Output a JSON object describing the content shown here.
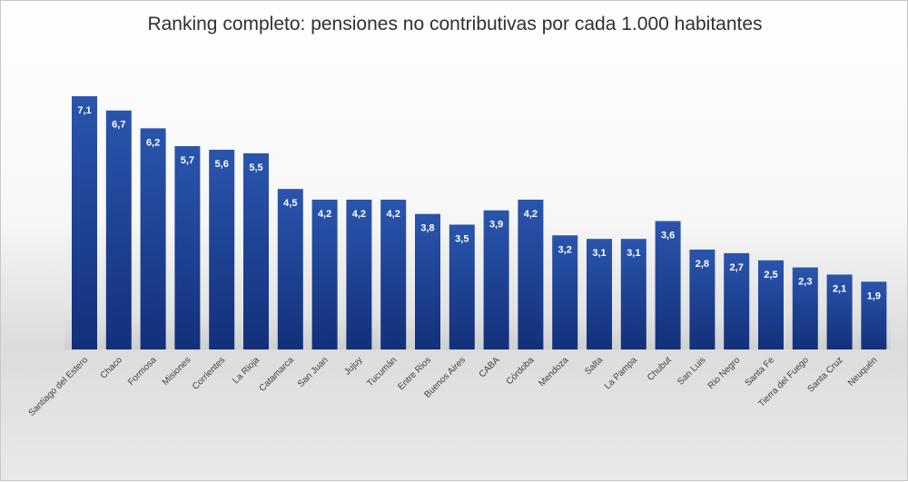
{
  "chart_data": {
    "type": "bar",
    "title": "Ranking completo: pensiones no contributivas por cada 1.000 habitantes",
    "categories": [
      "Santiago del Estero",
      "Chaco",
      "Formosa",
      "Misiones",
      "Corrientes",
      "La Rioja",
      "Catamarca",
      "San Juan",
      "Jujuy",
      "Tucumán",
      "Entre Rios",
      "Buenos Aires",
      "CABA",
      "Córdoba",
      "Mendoza",
      "Salta",
      "La Pampa",
      "Chubut",
      "San Luis",
      "Rio Negro",
      "Santa Fe",
      "Tierra del Fuego",
      "Santa Cruz",
      "Neuquén"
    ],
    "values": [
      7.1,
      6.7,
      6.2,
      5.7,
      5.6,
      5.5,
      4.5,
      4.2,
      4.2,
      4.2,
      3.8,
      3.5,
      3.9,
      4.2,
      3.2,
      3.1,
      3.1,
      3.6,
      2.8,
      2.7,
      2.5,
      2.3,
      2.1,
      1.9
    ],
    "value_labels": [
      "7,1",
      "6,7",
      "6,2",
      "5,7",
      "5,6",
      "5,5",
      "4,5",
      "4,2",
      "4,2",
      "4,2",
      "3,8",
      "3,5",
      "3,9",
      "4,2",
      "3,2",
      "3,1",
      "3,1",
      "3,6",
      "2,8",
      "2,7",
      "2,5",
      "2,3",
      "2,1",
      "1,9"
    ],
    "ylim": [
      0,
      7.1
    ],
    "xlabel": "",
    "ylabel": "",
    "grid": false,
    "legend": "none",
    "colors": {
      "bar_top": "#2a55ad",
      "bar_bottom": "#12307a",
      "label": "#ffffff"
    }
  }
}
